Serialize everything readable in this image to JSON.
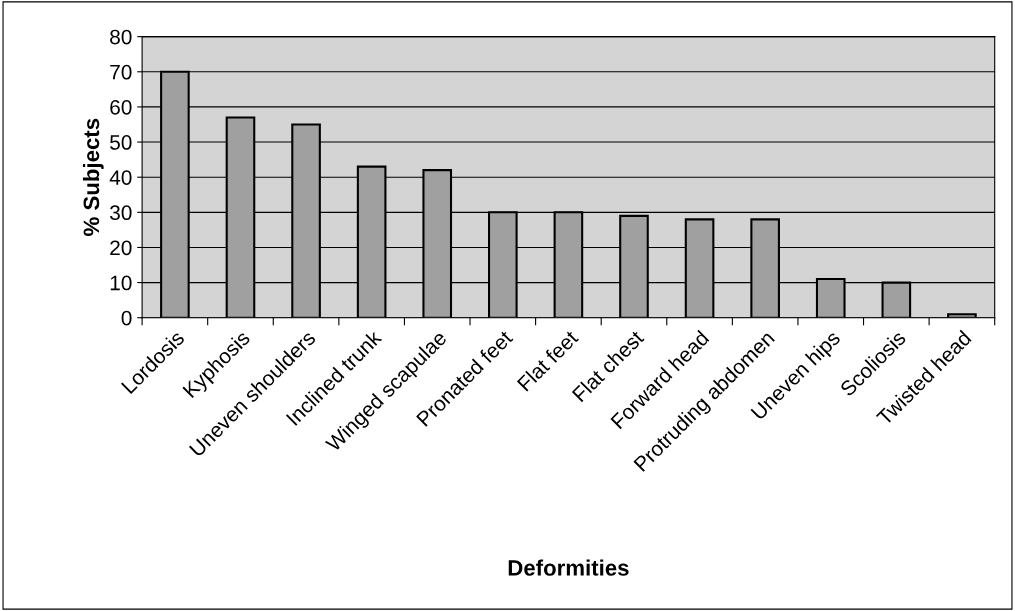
{
  "chart_data": {
    "type": "bar",
    "xlabel": "Deformities",
    "ylabel": "% Subjects",
    "categories": [
      "Lordosis",
      "Kyphosis",
      "Uneven shoulders",
      "Inclined trunk",
      "Winged scapulae",
      "Pronated feet",
      "Flat feet",
      "Flat chest",
      "Forward head",
      "Protruding abdomen",
      "Uneven hips",
      "Scoliosis",
      "Twisted head"
    ],
    "values": [
      70,
      57,
      55,
      43,
      42,
      30,
      30,
      29,
      28,
      28,
      11,
      10,
      1
    ],
    "color": "#a0a0a0",
    "ylim": [
      0,
      80
    ],
    "yticks": [
      0,
      10,
      20,
      30,
      40,
      50,
      60,
      70,
      80
    ],
    "grid": "y"
  }
}
